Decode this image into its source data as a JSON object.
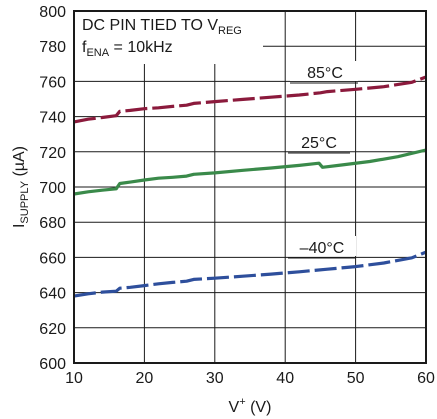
{
  "chart_data": {
    "type": "line",
    "title": "",
    "xlabel": "V+ (V)",
    "ylabel": "ISUPPLY (µA)",
    "xlim": [
      10,
      60
    ],
    "ylim": [
      600,
      800
    ],
    "x_ticks": [
      10,
      20,
      30,
      40,
      50,
      60
    ],
    "y_ticks": [
      600,
      620,
      640,
      660,
      680,
      700,
      720,
      740,
      760,
      780,
      800
    ],
    "grid": true,
    "annotations": {
      "line1": "DC PIN TIED TO VREG",
      "line2": "fENA = 10kHz"
    },
    "series": [
      {
        "name": "85°C",
        "color": "#8b1a3c",
        "dash": "long-dash",
        "x": [
          10,
          12,
          14,
          16,
          16.5,
          18,
          20,
          22,
          24,
          26,
          27,
          30,
          34,
          38,
          42,
          45,
          46,
          50,
          54,
          58,
          60
        ],
        "y": [
          737,
          738.5,
          739.5,
          740.5,
          743,
          743.5,
          744.5,
          745,
          745.8,
          746.5,
          747.5,
          748.5,
          749.8,
          751,
          752.3,
          753.5,
          754.2,
          755.5,
          757,
          759.5,
          762.5
        ]
      },
      {
        "name": "25°C",
        "color": "#3a8a4a",
        "dash": "solid",
        "x": [
          10,
          12,
          14,
          16,
          16.5,
          18,
          20,
          22,
          24,
          26,
          27,
          30,
          34,
          38,
          42,
          44.8,
          45.3,
          48,
          52,
          56,
          60
        ],
        "y": [
          696,
          697.3,
          698.2,
          699,
          702,
          702.8,
          704,
          705,
          705.5,
          706.2,
          707.2,
          708,
          709.5,
          710.8,
          712.3,
          713.5,
          711.2,
          712.5,
          714.5,
          717.2,
          721
        ]
      },
      {
        "name": "–40°C",
        "color": "#2e4f9c",
        "dash": "long-dash",
        "x": [
          10,
          12,
          14,
          16,
          16.5,
          18,
          20,
          22,
          24,
          26,
          27,
          30,
          34,
          38,
          42,
          46,
          50,
          54,
          58,
          60
        ],
        "y": [
          638,
          639.3,
          640.3,
          640.8,
          642.5,
          643,
          644,
          645,
          645.8,
          646.5,
          647.5,
          648.2,
          649.3,
          650.5,
          651.8,
          653.3,
          654.8,
          656.8,
          659.8,
          663
        ]
      }
    ]
  }
}
